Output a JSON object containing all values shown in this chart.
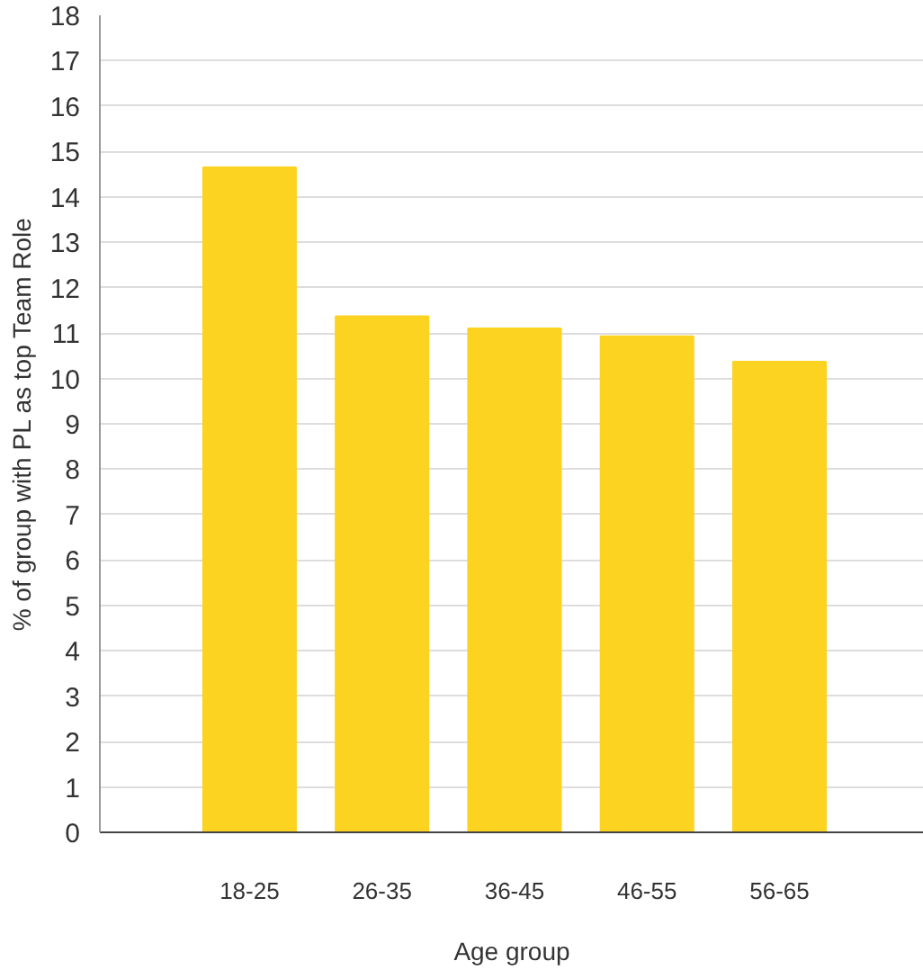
{
  "chart_data": {
    "type": "bar",
    "xlabel": "Age group",
    "ylabel": "% of group with PL as top Team Role",
    "categories": [
      "18-25",
      "26-35",
      "36-45",
      "46-55",
      "56-65"
    ],
    "values": [
      14.65,
      11.37,
      11.1,
      10.93,
      10.37
    ],
    "color": "#fbd320",
    "ylim": [
      0,
      18
    ],
    "yticks": [
      0,
      1,
      2,
      3,
      4,
      5,
      6,
      7,
      8,
      9,
      10,
      11,
      12,
      13,
      14,
      15,
      16,
      17,
      18
    ],
    "grid": "y"
  }
}
